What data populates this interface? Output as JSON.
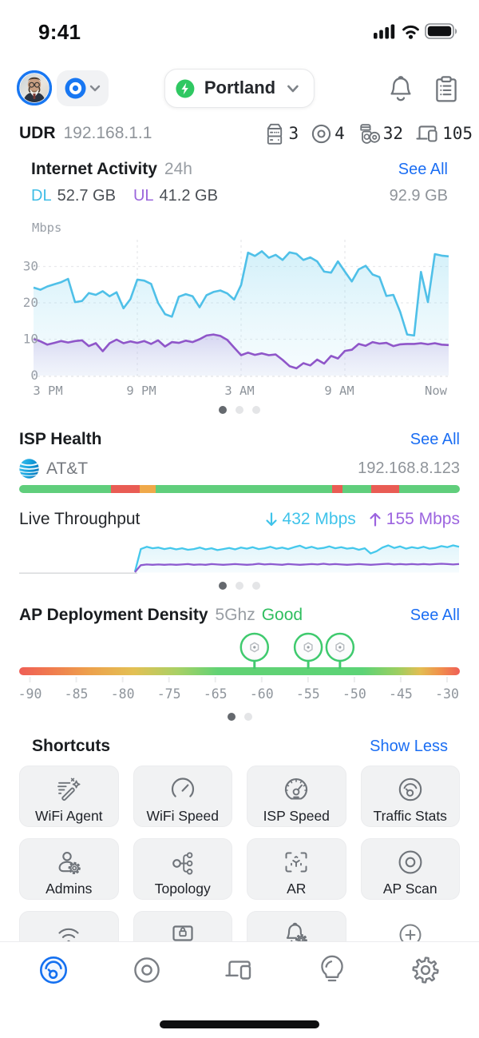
{
  "status_bar": {
    "time": "9:41",
    "icons": [
      "cellular-signal-icon",
      "wifi-icon",
      "battery-icon"
    ]
  },
  "header": {
    "avatar": "user-profile-photo",
    "site_switcher": "unifi-site-icon",
    "console": {
      "name": "Portland",
      "status_color": "#2fc862",
      "status_icon": "lightning-shield-icon"
    },
    "actions": [
      "notifications-bell-icon",
      "activity-log-icon"
    ]
  },
  "device_summary": {
    "model": "UDR",
    "ip": "192.168.1.1",
    "counts": [
      {
        "icon": "gateway-icon",
        "value": "3"
      },
      {
        "icon": "access-point-icon",
        "value": "4"
      },
      {
        "icon": "camera-devices-icon",
        "value": "32"
      },
      {
        "icon": "client-devices-icon",
        "value": "105"
      }
    ]
  },
  "internet_activity": {
    "title": "Internet Activity",
    "period": "24h",
    "see_all": "See All",
    "dl_label": "DL",
    "dl_value": "52.7 GB",
    "ul_label": "UL",
    "ul_value": "41.2 GB",
    "total_value": "92.9 GB",
    "page_dots": {
      "count": 3,
      "active": 0
    }
  },
  "isp_health": {
    "title": "ISP Health",
    "see_all": "See All",
    "provider": "AT&T",
    "provider_icon": "att-globe-icon",
    "ip": "192.168.8.123",
    "live_throughput_label": "Live Throughput",
    "download": "432 Mbps",
    "upload": "155 Mbps",
    "page_dots": {
      "count": 3,
      "active": 0
    }
  },
  "ap_density": {
    "title": "AP Deployment Density",
    "band": "5Ghz",
    "status": "Good",
    "status_color": "#2fbe5f",
    "see_all": "See All",
    "page_dots": {
      "count": 2,
      "active": 0
    }
  },
  "shortcuts": {
    "title": "Shortcuts",
    "toggle": "Show Less",
    "items": [
      {
        "icon": "wifi-agent-icon",
        "label": "WiFi Agent"
      },
      {
        "icon": "wifi-speed-icon",
        "label": "WiFi Speed"
      },
      {
        "icon": "isp-speed-icon",
        "label": "ISP Speed"
      },
      {
        "icon": "traffic-stats-icon",
        "label": "Traffic Stats"
      },
      {
        "icon": "admins-icon",
        "label": "Admins"
      },
      {
        "icon": "topology-icon",
        "label": "Topology"
      },
      {
        "icon": "ar-icon",
        "label": "AR"
      },
      {
        "icon": "ap-scan-icon",
        "label": "AP Scan"
      },
      {
        "icon": "wifi-signal-icon",
        "label": ""
      },
      {
        "icon": "console-lock-icon",
        "label": ""
      },
      {
        "icon": "bell-gear-icon",
        "label": ""
      },
      {
        "icon": "add-plus-icon",
        "label": "",
        "plain": true
      }
    ]
  },
  "tab_bar": {
    "tabs": [
      {
        "icon": "tab-wifi-icon",
        "active": true
      },
      {
        "icon": "tab-devices-icon",
        "active": false
      },
      {
        "icon": "tab-clients-icon",
        "active": false
      },
      {
        "icon": "tab-insights-icon",
        "active": false
      },
      {
        "icon": "tab-settings-icon",
        "active": false
      }
    ]
  },
  "chart_data": [
    {
      "id": "internet_activity",
      "type": "area",
      "title": "Internet Activity 24h",
      "ylabel": "Mbps",
      "yticks": [
        0,
        10,
        20,
        30
      ],
      "xticks": [
        "3 PM",
        "9 PM",
        "3 AM",
        "9 AM",
        "Now"
      ],
      "ylim": [
        0,
        38
      ],
      "grid": true,
      "series": [
        {
          "name": "DL",
          "color": "#4fc0e8",
          "values": [
            24.2,
            23.6,
            24.5,
            25.1,
            25.7,
            26.6,
            20.2,
            20.5,
            22.7,
            22.2,
            23.2,
            21.8,
            22.9,
            18.5,
            21.0,
            26.4,
            26.1,
            25.2,
            20.0,
            16.9,
            16.2,
            21.7,
            22.4,
            21.8,
            18.8,
            22.1,
            23.0,
            23.4,
            22.6,
            20.9,
            24.9,
            33.8,
            32.9,
            34.2,
            32.4,
            33.2,
            31.8,
            33.9,
            33.5,
            31.8,
            32.5,
            31.4,
            28.6,
            28.3,
            31.4,
            28.6,
            25.9,
            29.2,
            30.2,
            27.8,
            27.1,
            21.9,
            22.2,
            17.5,
            11.3,
            11.0,
            28.5,
            20.2,
            33.4,
            33.0,
            32.8
          ]
        },
        {
          "name": "UL",
          "color": "#8f56c9",
          "values": [
            10.1,
            9.4,
            8.5,
            9.0,
            9.5,
            9.1,
            9.5,
            9.7,
            8.1,
            8.9,
            6.7,
            8.9,
            9.9,
            8.9,
            9.4,
            9.0,
            9.5,
            8.7,
            9.7,
            8.0,
            9.2,
            9.0,
            9.6,
            9.2,
            10.0,
            11.0,
            11.3,
            10.9,
            9.8,
            7.7,
            5.6,
            6.3,
            5.7,
            6.1,
            5.6,
            5.8,
            4.3,
            2.6,
            2.0,
            3.4,
            2.8,
            4.4,
            3.3,
            5.4,
            4.7,
            6.8,
            7.1,
            8.7,
            8.2,
            9.2,
            8.8,
            9.0,
            8.1,
            8.6,
            8.7,
            8.7,
            8.9,
            8.6,
            8.9,
            8.5,
            8.4
          ]
        }
      ]
    },
    {
      "id": "live_throughput",
      "type": "area",
      "title": "Live Throughput",
      "ylim": [
        0,
        100
      ],
      "series": [
        {
          "name": "download",
          "color": "#45c8ec",
          "values": [
            2,
            64,
            70,
            66,
            68,
            64,
            67,
            63,
            66,
            62,
            64,
            68,
            63,
            66,
            61,
            64,
            67,
            63,
            68,
            65,
            69,
            64,
            66,
            70,
            65,
            68,
            64,
            69,
            73,
            66,
            70,
            65,
            67,
            71,
            66,
            69,
            65,
            67,
            62,
            66,
            52,
            58,
            68,
            74,
            67,
            71,
            65,
            69,
            66,
            70,
            65,
            67,
            72,
            69,
            74,
            70
          ]
        },
        {
          "name": "upload",
          "color": "#8d5bd0",
          "values": [
            1,
            20,
            22,
            21,
            22,
            21,
            22,
            21,
            22,
            23,
            21,
            22,
            21,
            23,
            22,
            21,
            22,
            23,
            22,
            21,
            22,
            24,
            22,
            23,
            22,
            21,
            23,
            22,
            21,
            22,
            23,
            22,
            24,
            22,
            23,
            22,
            21,
            22,
            23,
            22,
            21,
            22,
            23,
            24,
            22,
            23,
            22,
            23,
            22,
            23,
            22,
            23,
            24,
            23,
            22,
            23
          ]
        }
      ]
    },
    {
      "id": "isp_health_bar",
      "type": "segment-bar",
      "segments": [
        {
          "color": "#60ce7c",
          "pct": 20.8
        },
        {
          "color": "#e95c54",
          "pct": 6.5
        },
        {
          "color": "#f0a94a",
          "pct": 3.6
        },
        {
          "color": "#60ce7c",
          "pct": 40.2
        },
        {
          "color": "#e95c54",
          "pct": 2.2
        },
        {
          "color": "#60ce7c",
          "pct": 6.6
        },
        {
          "color": "#e95c54",
          "pct": 6.3
        },
        {
          "color": "#60ce7c",
          "pct": 13.8
        }
      ]
    },
    {
      "id": "ap_density_scale",
      "type": "gradient-scale",
      "xticks": [
        "-90",
        "-85",
        "-80",
        "-75",
        "-65",
        "-60",
        "-55",
        "-50",
        "-45",
        "-30"
      ],
      "gradient": [
        {
          "color": "#ef5f56",
          "pos": 0
        },
        {
          "color": "#f07a4e",
          "pos": 7
        },
        {
          "color": "#eda14c",
          "pos": 16
        },
        {
          "color": "#e3c054",
          "pos": 26
        },
        {
          "color": "#a8d065",
          "pos": 36
        },
        {
          "color": "#62d274",
          "pos": 45
        },
        {
          "color": "#5cd376",
          "pos": 78
        },
        {
          "color": "#9dce60",
          "pos": 86
        },
        {
          "color": "#e3bd52",
          "pos": 91
        },
        {
          "color": "#f0914c",
          "pos": 95.5
        },
        {
          "color": "#ef5f56",
          "pos": 100
        }
      ],
      "markers": [
        {
          "dbm": -61,
          "pct": 53.4
        },
        {
          "dbm": -55,
          "pct": 65.6
        },
        {
          "dbm": -51,
          "pct": 72.8
        }
      ]
    }
  ]
}
